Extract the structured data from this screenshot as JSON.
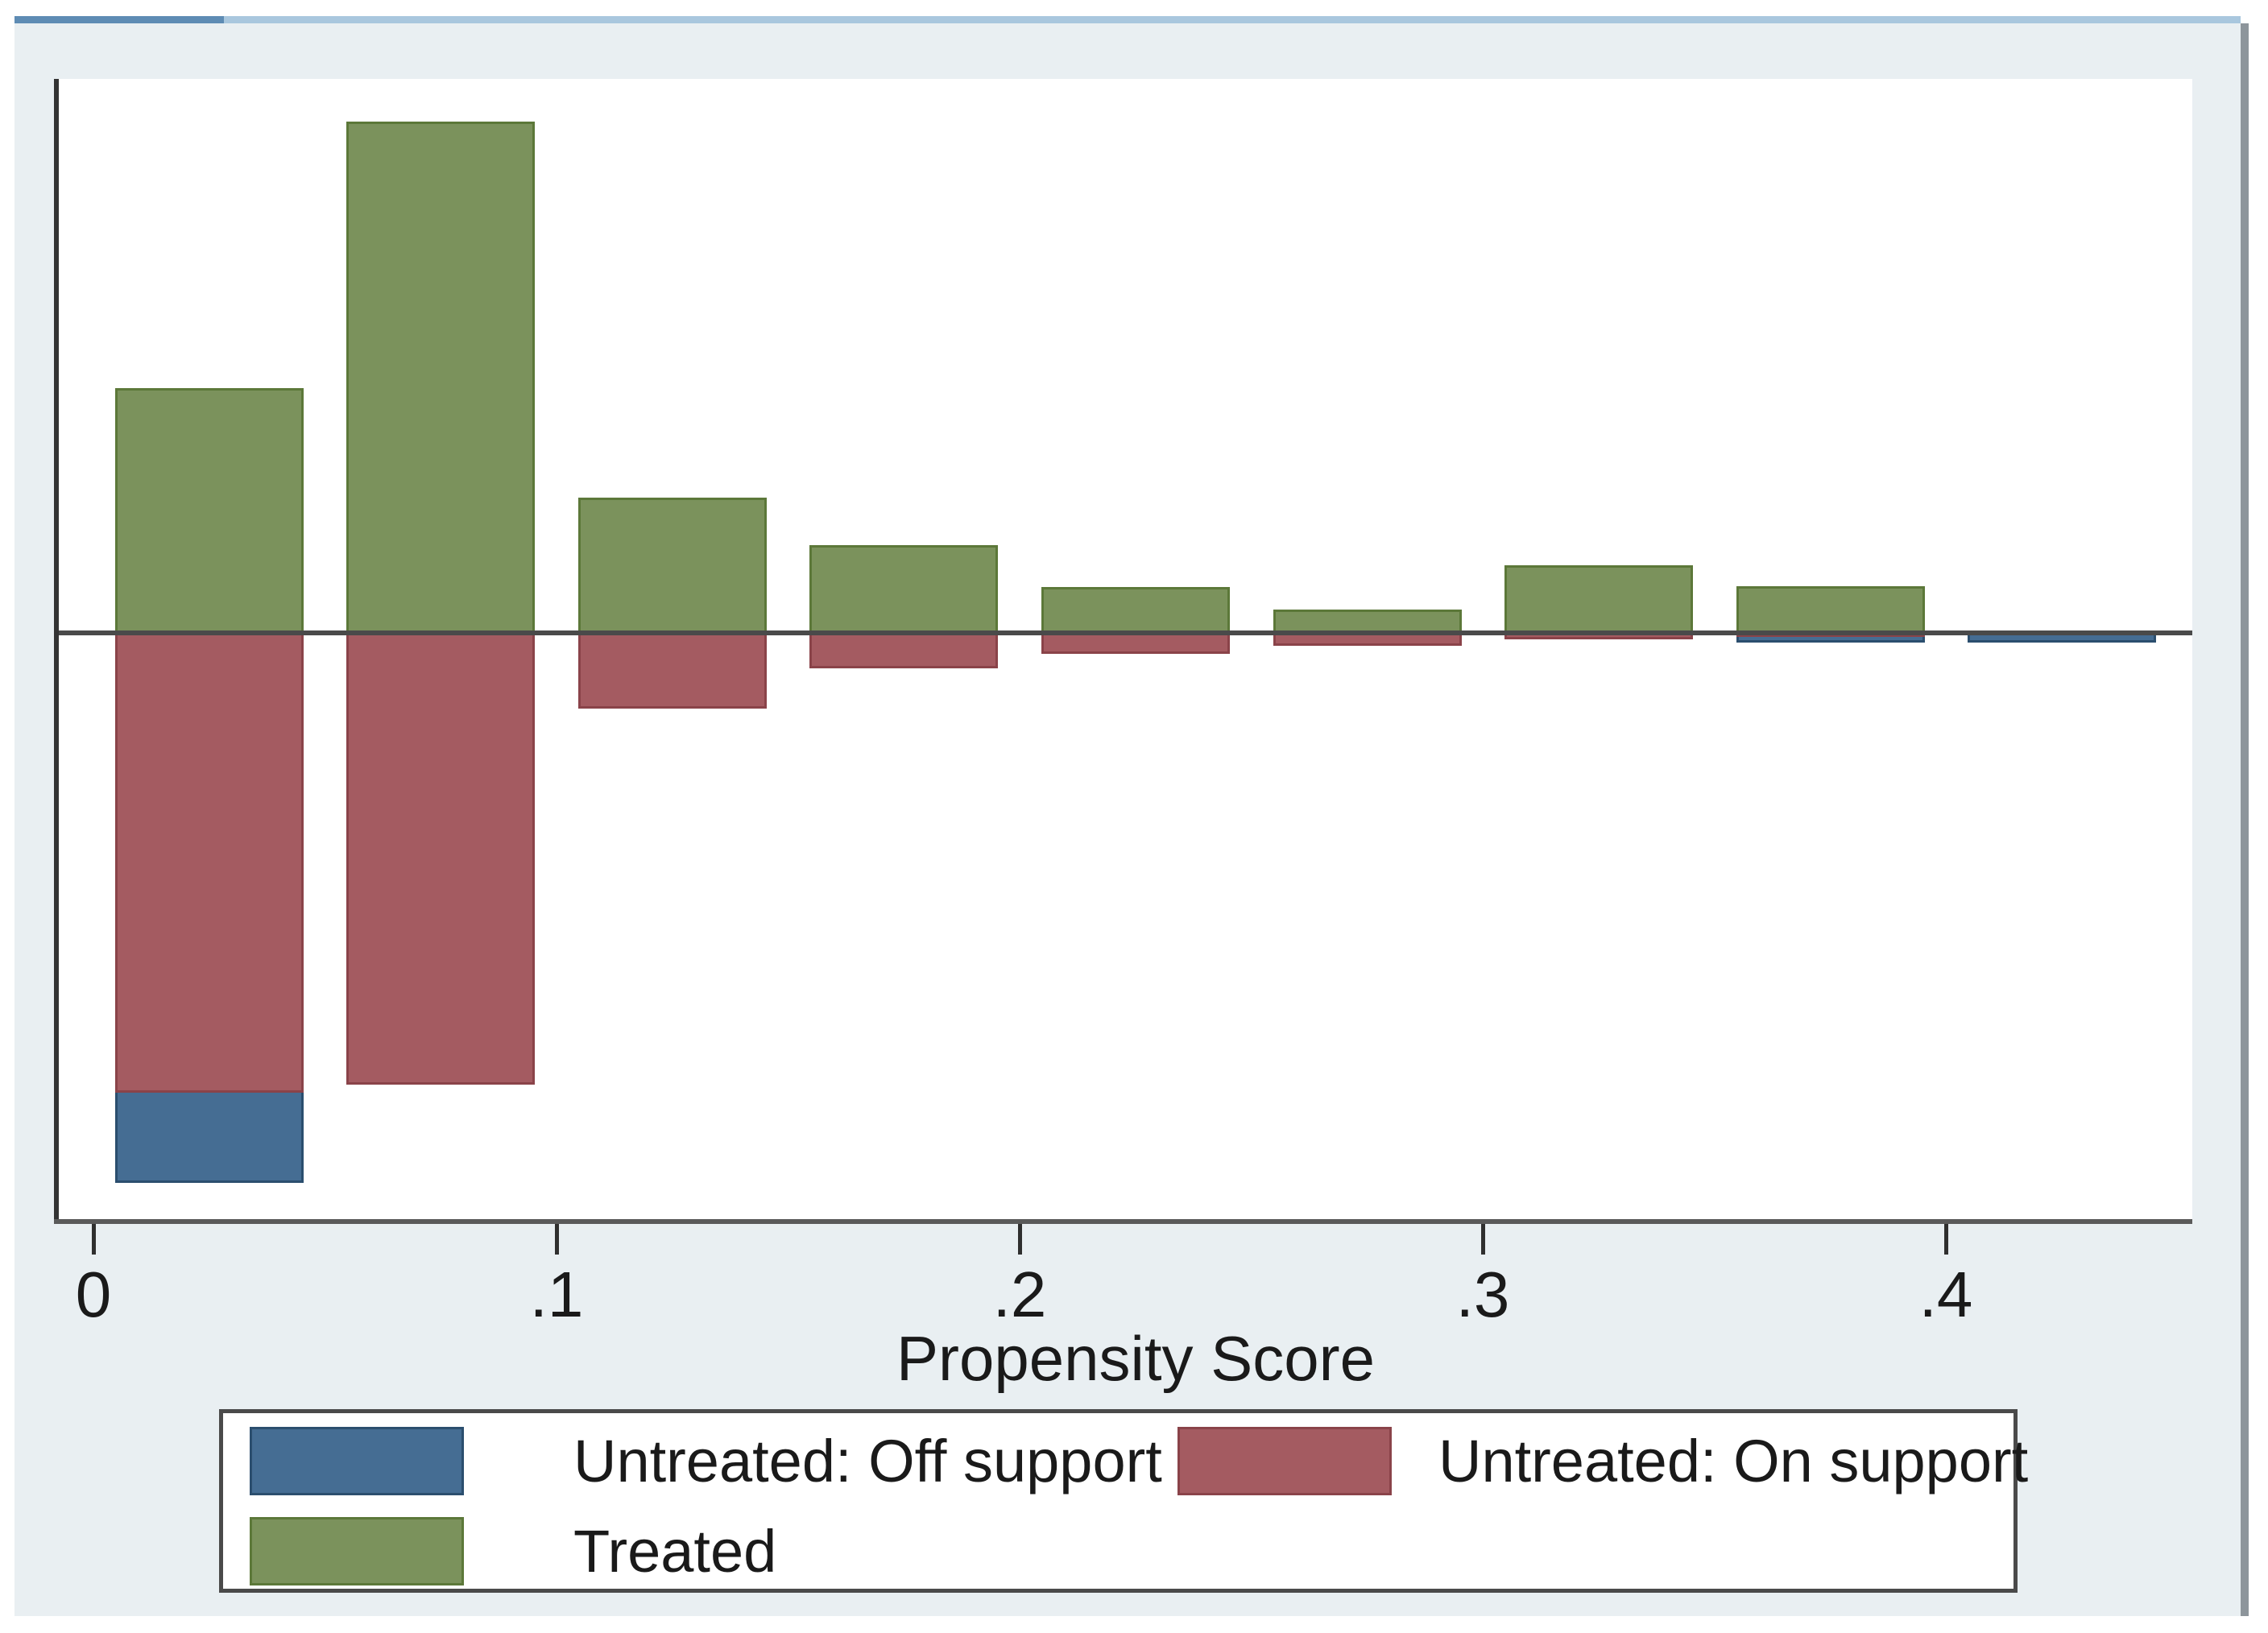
{
  "window_title": "",
  "colors": {
    "figure_background": "#e9eff2",
    "plot_background": "#ffffff",
    "untreated_off_fill": "#456d93",
    "untreated_off_border": "#2b4e6e",
    "untreated_on_fill": "#a45b61",
    "untreated_on_border": "#8a4349",
    "treated_fill": "#7b925c",
    "treated_border": "#5c7839",
    "axis_line": "#333333",
    "zero_line": "#4a4a4a",
    "text": "#1a1a1a",
    "top_edge_light": "#a9c7de",
    "top_edge_dark": "#5e8cb4",
    "right_edge": "#8d959b",
    "legend_border": "#4a4a4a"
  },
  "chart_data": {
    "type": "bar",
    "subtype": "mirrored-histogram (Stata psgraph common-support plot)",
    "title": "",
    "xlabel": "Propensity Score",
    "ylabel": "",
    "y_axis_labeled": false,
    "grid": false,
    "legend_position": "bottom",
    "xlim": [
      0,
      0.453
    ],
    "x_ticks": [
      {
        "value": 0.0,
        "label": "0"
      },
      {
        "value": 0.1,
        "label": ".1"
      },
      {
        "value": 0.2,
        "label": ".2"
      },
      {
        "value": 0.3,
        "label": ".3"
      },
      {
        "value": 0.4,
        "label": ".4"
      }
    ],
    "bin_width": 0.05,
    "value_note": "Heights are relative frequencies normalized to the tallest treated bar = 1.0 (y axis is unlabeled in the source graph). Treated plotted upward; untreated plotted downward, with off-support stacked below on-support.",
    "bins": [
      {
        "center": 0.025,
        "treated": 0.479,
        "untreated_on": 0.899,
        "untreated_off": 0.176
      },
      {
        "center": 0.075,
        "treated": 1.0,
        "untreated_on": 0.883,
        "untreated_off": 0
      },
      {
        "center": 0.125,
        "treated": 0.265,
        "untreated_on": 0.148,
        "untreated_off": 0
      },
      {
        "center": 0.175,
        "treated": 0.172,
        "untreated_on": 0.069,
        "untreated_off": 0
      },
      {
        "center": 0.225,
        "treated": 0.09,
        "untreated_on": 0.041,
        "untreated_off": 0
      },
      {
        "center": 0.275,
        "treated": 0.046,
        "untreated_on": 0.025,
        "untreated_off": 0
      },
      {
        "center": 0.325,
        "treated": 0.132,
        "untreated_on": 0.013,
        "untreated_off": 0
      },
      {
        "center": 0.375,
        "treated": 0.091,
        "untreated_on": 0.008,
        "untreated_off": 0.011
      },
      {
        "center": 0.425,
        "treated": 0,
        "untreated_on": 0,
        "untreated_off": 0.019
      }
    ],
    "series_legend": [
      {
        "name": "Untreated: Off support",
        "series": "untreated_off"
      },
      {
        "name": "Untreated: On support",
        "series": "untreated_on"
      },
      {
        "name": "Treated",
        "series": "treated"
      }
    ]
  }
}
